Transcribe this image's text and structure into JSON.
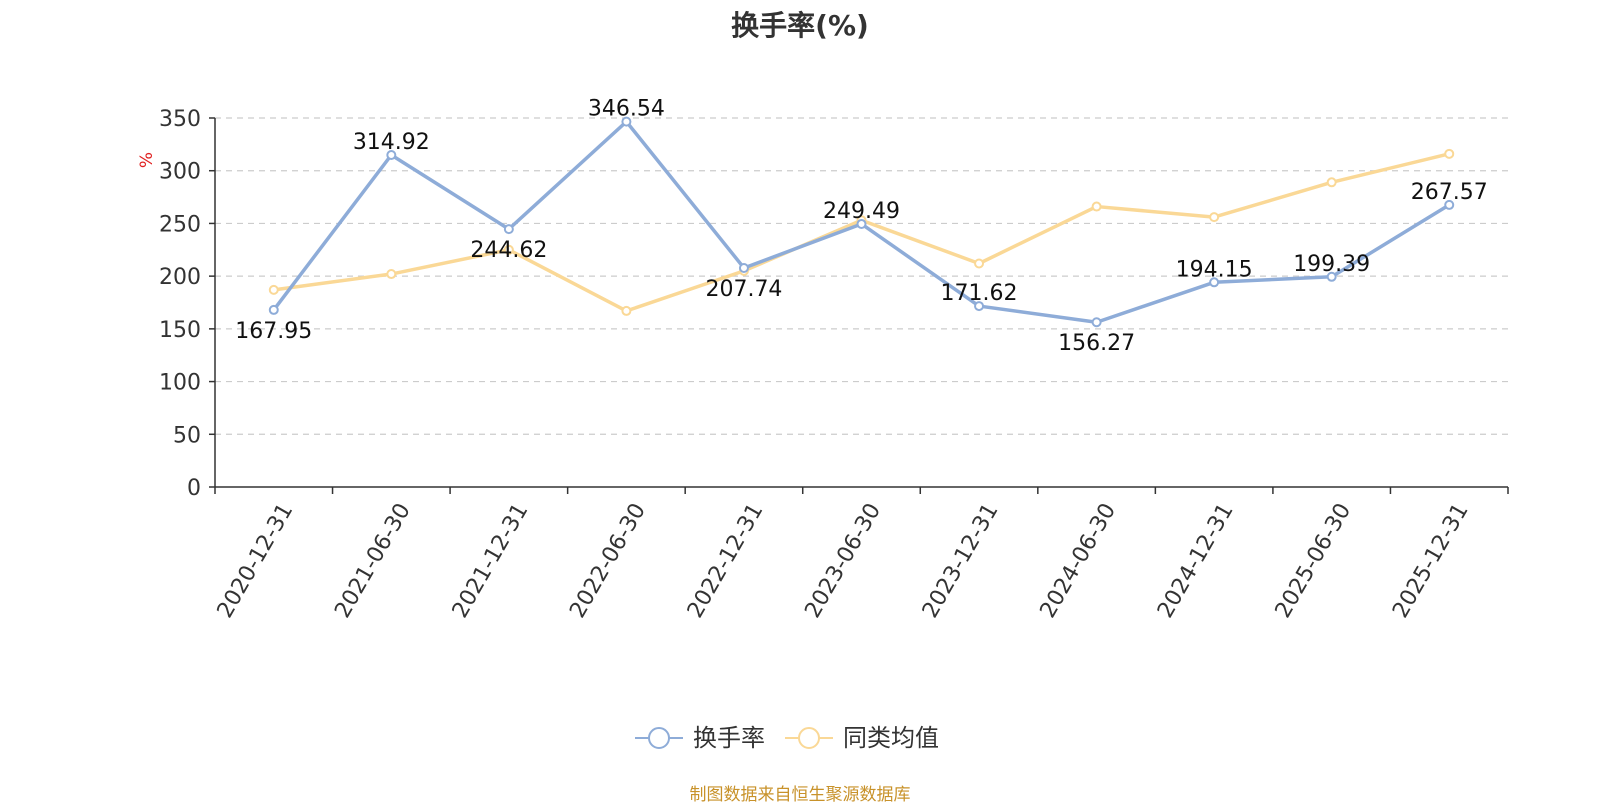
{
  "title": "换手率(%)",
  "source_note": "制图数据来自恒生聚源数据库",
  "chart_data": {
    "type": "line",
    "title": "换手率(%)",
    "ylabel": "%",
    "xlabel": "",
    "ylim": [
      0,
      350
    ],
    "yticks": [
      "0",
      "50",
      "100",
      "150",
      "200",
      "250",
      "300",
      "350"
    ],
    "grid": "horizontal-dashed",
    "legend_position": "bottom-center",
    "categories": [
      "2020-12-31",
      "2021-06-30",
      "2021-12-31",
      "2022-06-30",
      "2022-12-31",
      "2023-06-30",
      "2023-12-31",
      "2024-06-30",
      "2024-12-31",
      "2025-06-30",
      "2025-12-31"
    ],
    "series": [
      {
        "name": "换手率",
        "color": "#8eacd8",
        "values": [
          167.95,
          314.92,
          244.62,
          346.54,
          207.74,
          249.49,
          171.62,
          156.27,
          194.15,
          199.39,
          267.57
        ],
        "labels": [
          "167.95",
          "314.92",
          "244.62",
          "346.54",
          "207.74",
          "249.49",
          "171.62",
          "156.27",
          "194.15",
          "199.39",
          "267.57"
        ]
      },
      {
        "name": "同类均值",
        "color": "#fad896",
        "values": [
          187,
          202,
          225,
          167,
          205,
          253,
          212,
          266,
          256,
          289,
          316
        ]
      }
    ]
  }
}
